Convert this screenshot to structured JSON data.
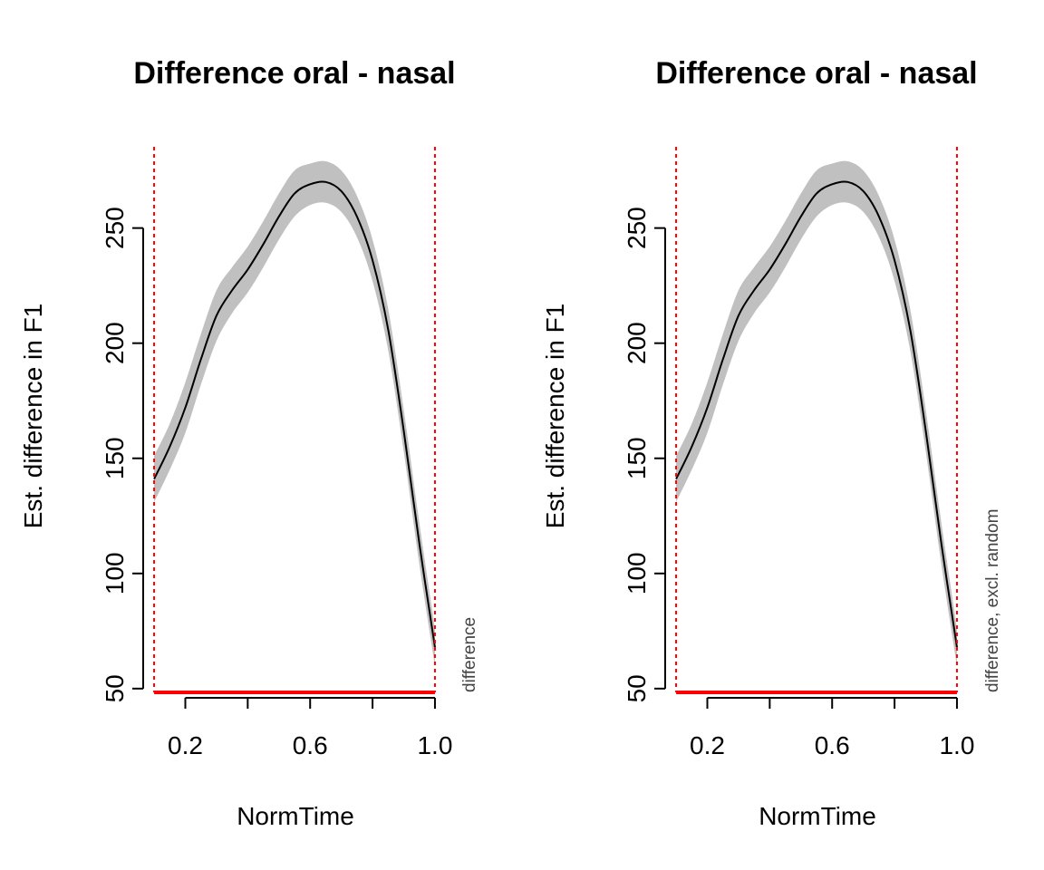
{
  "chart_data": [
    {
      "type": "line",
      "title": "Difference oral - nasal",
      "xlabel": "NormTime",
      "ylabel": "Est. difference in F1",
      "side_label": "difference",
      "xlim": [
        0.065,
        1.035
      ],
      "ylim": [
        46,
        290
      ],
      "xticks": [
        0.2,
        0.4,
        0.6,
        0.8,
        1.0
      ],
      "xtick_labels": [
        "0.2",
        "",
        "0.6",
        "",
        "1.0"
      ],
      "yticks": [
        50,
        100,
        150,
        200,
        250
      ],
      "grid": false,
      "series": [
        {
          "x": [
            0.1,
            0.15,
            0.2,
            0.25,
            0.3,
            0.35,
            0.4,
            0.45,
            0.5,
            0.55,
            0.6,
            0.65,
            0.7,
            0.75,
            0.8,
            0.85,
            0.9,
            0.95,
            1.0
          ],
          "y": [
            141,
            155,
            172,
            193,
            212,
            223,
            232,
            243,
            255,
            265,
            269,
            270,
            266,
            255,
            236,
            206,
            162,
            113,
            68
          ],
          "lower": [
            131,
            145,
            161,
            182,
            201,
            213,
            222,
            233,
            245,
            255,
            260,
            261,
            257,
            246,
            227,
            197,
            153,
            104,
            60
          ],
          "upper": [
            151,
            165,
            183,
            204,
            223,
            233,
            242,
            253,
            265,
            275,
            278,
            279,
            275,
            264,
            245,
            215,
            171,
            122,
            76
          ]
        }
      ],
      "vlines": [
        0.1,
        1.0
      ],
      "significant_range": [
        0.1,
        1.0
      ],
      "colors": {
        "band": "#c0c0c0",
        "line": "#000000",
        "marker": "#ff0000"
      }
    },
    {
      "type": "line",
      "title": "Difference oral - nasal",
      "xlabel": "NormTime",
      "ylabel": "Est. difference in F1",
      "side_label": "difference, excl. random",
      "xlim": [
        0.065,
        1.035
      ],
      "ylim": [
        46,
        290
      ],
      "xticks": [
        0.2,
        0.4,
        0.6,
        0.8,
        1.0
      ],
      "xtick_labels": [
        "0.2",
        "",
        "0.6",
        "",
        "1.0"
      ],
      "yticks": [
        50,
        100,
        150,
        200,
        250
      ],
      "grid": false,
      "series": [
        {
          "x": [
            0.1,
            0.15,
            0.2,
            0.25,
            0.3,
            0.35,
            0.4,
            0.45,
            0.5,
            0.55,
            0.6,
            0.65,
            0.7,
            0.75,
            0.8,
            0.85,
            0.9,
            0.95,
            1.0
          ],
          "y": [
            141,
            155,
            172,
            193,
            212,
            223,
            232,
            243,
            255,
            265,
            269,
            270,
            266,
            255,
            236,
            206,
            162,
            113,
            68
          ],
          "lower": [
            131,
            145,
            161,
            182,
            201,
            213,
            222,
            233,
            245,
            255,
            260,
            261,
            257,
            246,
            227,
            197,
            153,
            104,
            60
          ],
          "upper": [
            151,
            165,
            183,
            204,
            223,
            233,
            242,
            253,
            265,
            275,
            278,
            279,
            275,
            264,
            245,
            215,
            171,
            122,
            76
          ]
        }
      ],
      "vlines": [
        0.1,
        1.0
      ],
      "significant_range": [
        0.1,
        1.0
      ],
      "colors": {
        "band": "#c0c0c0",
        "line": "#000000",
        "marker": "#ff0000"
      }
    }
  ]
}
